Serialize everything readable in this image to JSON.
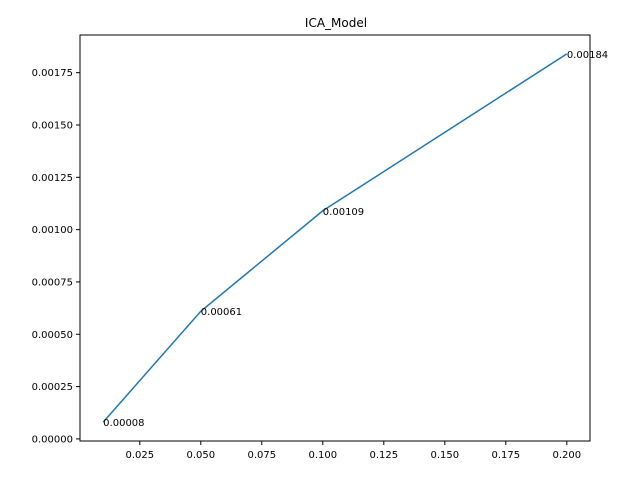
{
  "chart_data": {
    "type": "line",
    "title": "ICA_Model",
    "xlabel": "",
    "ylabel": "",
    "xlim": [
      0.0005,
      0.2095
    ],
    "ylim": [
      -1e-05,
      0.00193
    ],
    "xticks": [
      0.025,
      0.05,
      0.075,
      0.1,
      0.125,
      0.15,
      0.175,
      0.2
    ],
    "xtick_labels": [
      "0.025",
      "0.050",
      "0.075",
      "0.100",
      "0.125",
      "0.150",
      "0.175",
      "0.200"
    ],
    "yticks": [
      0.0,
      0.00025,
      0.0005,
      0.00075,
      0.001,
      0.00125,
      0.0015,
      0.00175
    ],
    "ytick_labels": [
      "0.00000",
      "0.00025",
      "0.00050",
      "0.00075",
      "0.00100",
      "0.00125",
      "0.00150",
      "0.00175"
    ],
    "grid": false,
    "series": [
      {
        "color": "#1f77b4",
        "x": [
          0.01,
          0.05,
          0.1,
          0.2
        ],
        "y": [
          8e-05,
          0.00061,
          0.00109,
          0.00184
        ],
        "labels": [
          "0.00008",
          "0.00061",
          "0.00109",
          "0.00184"
        ]
      }
    ]
  }
}
